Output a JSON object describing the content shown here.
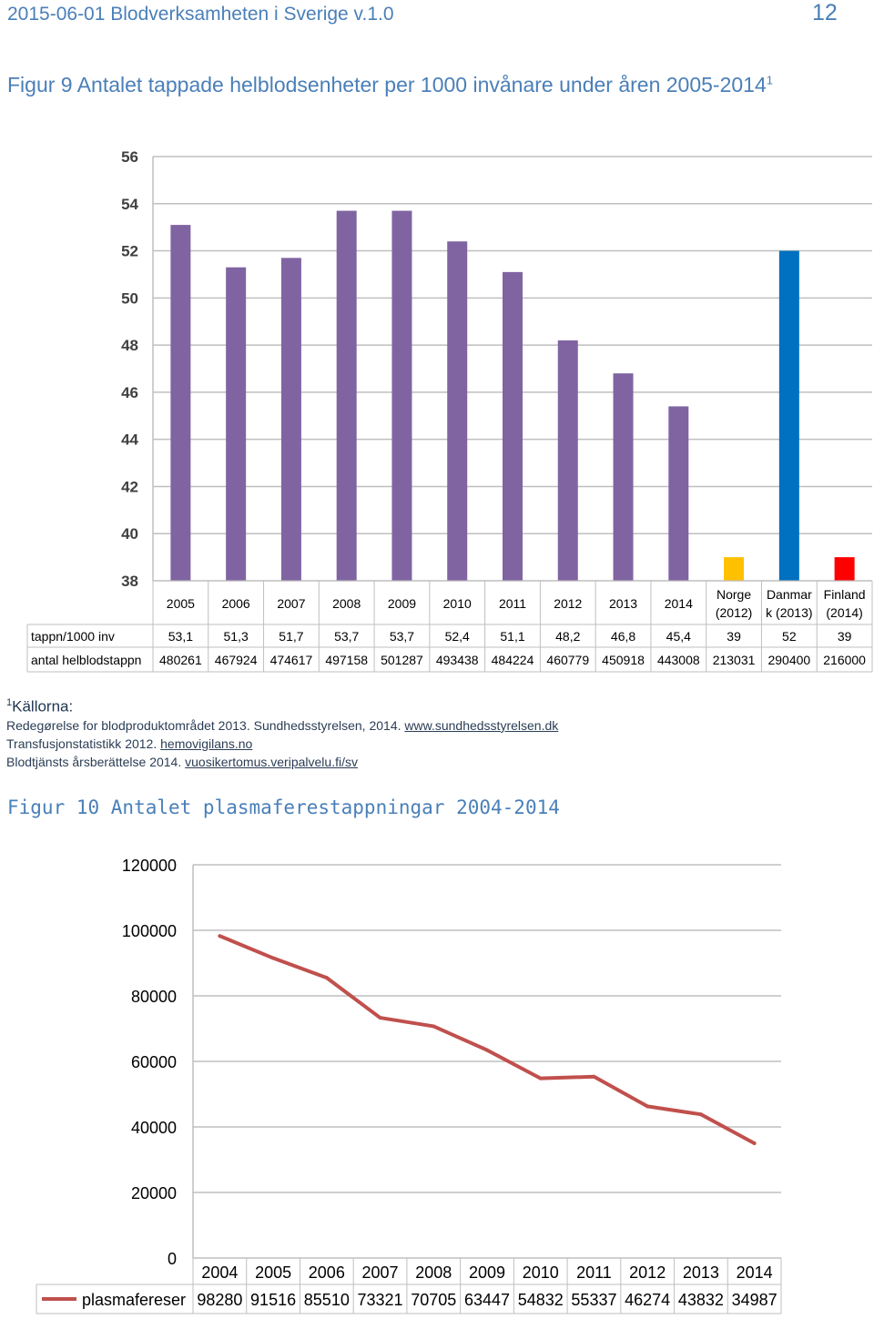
{
  "header": {
    "left": "2015-06-01 Blodverksamheten i Sverige v.1.0",
    "page_number": "12"
  },
  "figure9": {
    "title": "Figur 9 Antalet tappade helblodsenheter per 1000 invånare under åren 2005-2014",
    "footnote_mark": "1",
    "colors": {
      "sweden": "#8064a2",
      "norway": "#ffc000",
      "denmark": "#0070c0",
      "finland": "#ff0000"
    },
    "chart_data": {
      "type": "bar",
      "categories": [
        "2005",
        "2006",
        "2007",
        "2008",
        "2009",
        "2010",
        "2011",
        "2012",
        "2013",
        "2014",
        "Norge (2012)",
        "Danmark (2013)",
        "Finland (2014)"
      ],
      "category_lines": [
        [
          "2005"
        ],
        [
          "2006"
        ],
        [
          "2007"
        ],
        [
          "2008"
        ],
        [
          "2009"
        ],
        [
          "2010"
        ],
        [
          "2011"
        ],
        [
          "2012"
        ],
        [
          "2013"
        ],
        [
          "2014"
        ],
        [
          "Norge",
          "(2012)"
        ],
        [
          "Danmar",
          "k (2013)"
        ],
        [
          "Finland",
          "(2014)"
        ]
      ],
      "values": [
        53.1,
        51.3,
        51.7,
        53.7,
        53.7,
        52.4,
        51.1,
        48.2,
        46.8,
        45.4,
        39,
        52,
        39
      ],
      "y_ticks": [
        "56",
        "54",
        "52",
        "50",
        "48",
        "46",
        "44",
        "42",
        "40",
        "38"
      ],
      "ylim": [
        38,
        56
      ],
      "table": {
        "rows": [
          {
            "label": "tappn/1000 inv",
            "cells": [
              "53,1",
              "51,3",
              "51,7",
              "53,7",
              "53,7",
              "52,4",
              "51,1",
              "48,2",
              "46,8",
              "45,4",
              "39",
              "52",
              "39"
            ]
          },
          {
            "label": "antal helblodstappn",
            "cells": [
              "480261",
              "467924",
              "474617",
              "497158",
              "501287",
              "493438",
              "484224",
              "460779",
              "450918",
              "443008",
              "213031",
              "290400",
              "216000"
            ]
          }
        ]
      }
    }
  },
  "sources": {
    "mark": "1",
    "heading": "Källorna:",
    "lines": [
      {
        "text": "Redegørelse for blodproduktområdet 2013. Sundhedsstyrelsen, 2014. ",
        "link": "www.sundhedsstyrelsen.dk"
      },
      {
        "text": "Transfusjonstatistikk 2012. ",
        "link": "hemovigilans.no"
      },
      {
        "text": "Blodtjänsts årsberättelse 2014. ",
        "link": "vuosikertomus.veripalvelu.fi/sv"
      }
    ]
  },
  "figure10": {
    "title": "Figur 10 Antalet plasmaferestappningar 2004-2014",
    "line_color": "#c0504d",
    "chart_data": {
      "type": "line",
      "x": [
        "2004",
        "2005",
        "2006",
        "2007",
        "2008",
        "2009",
        "2010",
        "2011",
        "2012",
        "2013",
        "2014"
      ],
      "series": [
        {
          "name": "plasmafereser",
          "values": [
            98280,
            91516,
            85510,
            73321,
            70705,
            63447,
            54832,
            55337,
            46274,
            43832,
            34987
          ]
        }
      ],
      "y_ticks": [
        "120000",
        "100000",
        "80000",
        "60000",
        "40000",
        "20000",
        "0"
      ],
      "ylim": [
        0,
        120000
      ],
      "table_cells": [
        "98280",
        "91516",
        "85510",
        "73321",
        "70705",
        "63447",
        "54832",
        "55337",
        "46274",
        "43832",
        "34987"
      ]
    }
  }
}
